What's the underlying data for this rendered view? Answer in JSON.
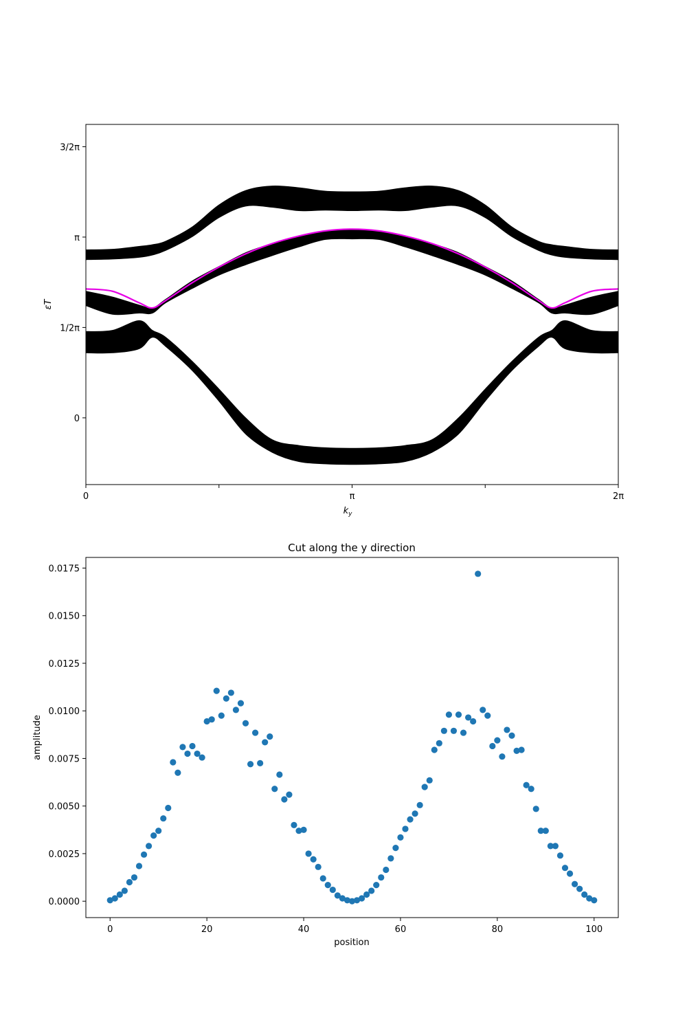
{
  "chart_data": [
    {
      "type": "area",
      "title": "",
      "xlabel": "k",
      "xlabel_sub": "y",
      "ylabel": "εT",
      "xlim": [
        0,
        6.2832
      ],
      "ylim": [
        -1.16,
        5.1
      ],
      "grid": false,
      "xticks": [
        {
          "value": 0,
          "label": "0"
        },
        {
          "value": 1.5708,
          "label": ""
        },
        {
          "value": 3.1416,
          "label": "π"
        },
        {
          "value": 4.7124,
          "label": ""
        },
        {
          "value": 6.2832,
          "label": "2π"
        }
      ],
      "yticks": [
        {
          "value": 0,
          "label": "0"
        },
        {
          "value": 1.5708,
          "label": "1/2π"
        },
        {
          "value": 3.1416,
          "label": "π"
        },
        {
          "value": 4.7124,
          "label": "3/2π"
        }
      ],
      "band_color": "#000000",
      "edge_state_color": "#e600e6",
      "band_kx": [
        0,
        0.3142,
        0.6283,
        0.7854,
        0.9425,
        1.2566,
        1.5708,
        1.885,
        2.1991,
        2.5133,
        2.8274,
        3.1416
      ],
      "bands": [
        {
          "lower": [
            1.13,
            1.13,
            1.2,
            1.4,
            1.24,
            0.82,
            0.29,
            -0.28,
            -0.6,
            -0.76,
            -0.8,
            -0.81
          ],
          "upper": [
            1.5,
            1.52,
            1.69,
            1.52,
            1.4,
            0.98,
            0.5,
            0.0,
            -0.38,
            -0.48,
            -0.52,
            -0.53
          ]
        },
        {
          "lower": [
            1.95,
            1.8,
            1.82,
            1.82,
            2.0,
            2.25,
            2.48,
            2.66,
            2.82,
            2.97,
            3.1,
            3.11
          ],
          "upper": [
            2.2,
            2.1,
            1.96,
            1.91,
            2.06,
            2.38,
            2.63,
            2.87,
            3.03,
            3.15,
            3.24,
            3.27
          ]
        },
        {
          "lower": [
            2.75,
            2.76,
            2.79,
            2.83,
            2.91,
            3.15,
            3.48,
            3.68,
            3.66,
            3.6,
            3.61,
            3.6
          ],
          "upper": [
            2.92,
            2.93,
            2.98,
            3.01,
            3.07,
            3.32,
            3.7,
            3.95,
            4.03,
            4.0,
            3.94,
            3.93
          ]
        }
      ],
      "edge_state": [
        2.24,
        2.2,
        2.0,
        1.91,
        2.04,
        2.35,
        2.62,
        2.85,
        3.03,
        3.16,
        3.25,
        3.28
      ]
    },
    {
      "type": "scatter",
      "title": "Cut along the y direction",
      "xlabel": "position",
      "ylabel": "amplitude",
      "xlim": [
        -5,
        105
      ],
      "ylim": [
        -0.00086,
        0.01806
      ],
      "grid": false,
      "xticks": [
        {
          "value": 0,
          "label": "0"
        },
        {
          "value": 20,
          "label": "20"
        },
        {
          "value": 40,
          "label": "40"
        },
        {
          "value": 60,
          "label": "60"
        },
        {
          "value": 80,
          "label": "80"
        },
        {
          "value": 100,
          "label": "100"
        }
      ],
      "yticks": [
        {
          "value": 0,
          "label": "0.0000"
        },
        {
          "value": 0.0025,
          "label": "0.0025"
        },
        {
          "value": 0.005,
          "label": "0.0050"
        },
        {
          "value": 0.0075,
          "label": "0.0075"
        },
        {
          "value": 0.01,
          "label": "0.0100"
        },
        {
          "value": 0.0125,
          "label": "0.0125"
        },
        {
          "value": 0.015,
          "label": "0.0150"
        },
        {
          "value": 0.0175,
          "label": "0.0175"
        }
      ],
      "marker_color": "#1f77b4",
      "x": [
        0,
        1,
        2,
        3,
        4,
        5,
        6,
        7,
        8,
        9,
        10,
        11,
        12,
        13,
        14,
        15,
        16,
        17,
        18,
        19,
        20,
        21,
        22,
        23,
        24,
        25,
        26,
        27,
        28,
        29,
        30,
        31,
        32,
        33,
        34,
        35,
        36,
        37,
        38,
        39,
        40,
        41,
        42,
        43,
        44,
        45,
        46,
        47,
        48,
        49,
        50,
        51,
        52,
        53,
        54,
        55,
        56,
        57,
        58,
        59,
        60,
        61,
        62,
        63,
        64,
        65,
        66,
        67,
        68,
        69,
        70,
        71,
        72,
        73,
        74,
        75,
        76,
        77,
        78,
        79,
        80,
        81,
        82,
        83,
        84,
        85,
        86,
        87,
        88,
        89,
        90,
        91,
        92,
        93,
        94,
        95,
        96,
        97,
        98,
        99,
        100
      ],
      "y": [
        5e-05,
        0.00015,
        0.00035,
        0.00055,
        0.001,
        0.00125,
        0.00185,
        0.00245,
        0.0029,
        0.00345,
        0.0037,
        0.00435,
        0.0049,
        0.0073,
        0.00675,
        0.0081,
        0.00775,
        0.00815,
        0.00775,
        0.00755,
        0.00945,
        0.00955,
        0.01105,
        0.00975,
        0.01065,
        0.01095,
        0.01005,
        0.0104,
        0.00935,
        0.0072,
        0.00885,
        0.00725,
        0.00835,
        0.00865,
        0.0059,
        0.00665,
        0.00535,
        0.0056,
        0.004,
        0.0037,
        0.00375,
        0.0025,
        0.0022,
        0.0018,
        0.0012,
        0.00085,
        0.0006,
        0.0003,
        0.00015,
        5e-05,
        0.0,
        5e-05,
        0.00015,
        0.00035,
        0.00055,
        0.00085,
        0.00125,
        0.00165,
        0.00225,
        0.0028,
        0.00335,
        0.0038,
        0.0043,
        0.0046,
        0.00505,
        0.006,
        0.00635,
        0.00795,
        0.0083,
        0.00895,
        0.0098,
        0.00895,
        0.0098,
        0.00885,
        0.00965,
        0.00945,
        0.0172,
        0.01005,
        0.00975,
        0.00815,
        0.00845,
        0.0076,
        0.009,
        0.0087,
        0.0079,
        0.00795,
        0.0061,
        0.0059,
        0.00485,
        0.0037,
        0.0037,
        0.0029,
        0.0029,
        0.0024,
        0.00175,
        0.00145,
        0.0009,
        0.00065,
        0.00035,
        0.00015,
        5e-05
      ]
    }
  ]
}
